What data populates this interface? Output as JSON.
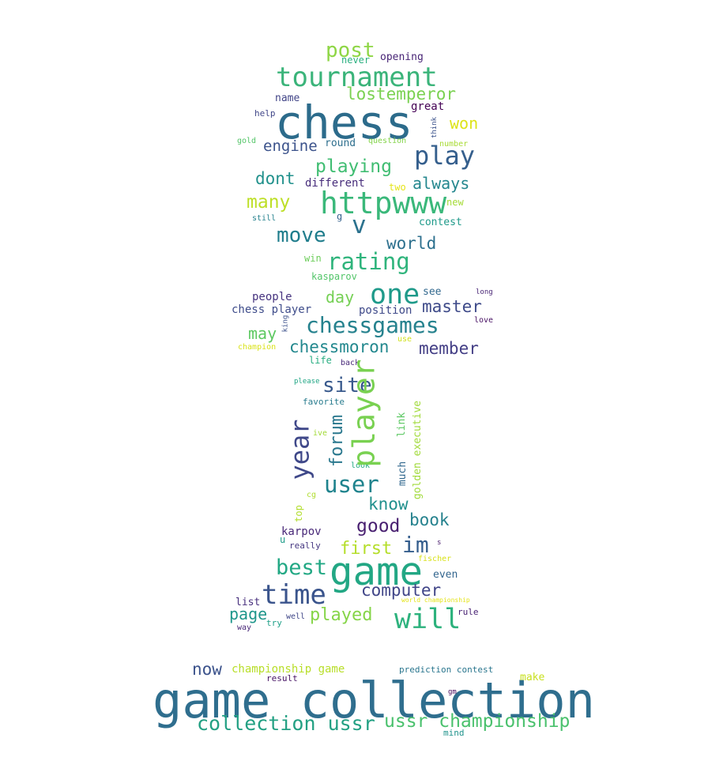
{
  "word_cloud": {
    "words": [
      {
        "text": "game collection",
        "color": "#2f6e8e"
      },
      {
        "text": "chess",
        "color": "#2c6b8b"
      },
      {
        "text": "game",
        "color": "#22a784"
      },
      {
        "text": "tournament",
        "color": "#3bb47a"
      },
      {
        "text": "httpwww",
        "color": "#3ab87a"
      },
      {
        "text": "player",
        "color": "#79d151"
      },
      {
        "text": "play",
        "color": "#355f8d"
      },
      {
        "text": "one",
        "color": "#1f9a8a"
      },
      {
        "text": "time",
        "color": "#3a548c"
      },
      {
        "text": "will",
        "color": "#2db27d"
      },
      {
        "text": "year",
        "color": "#3f4889"
      },
      {
        "text": "chessgames",
        "color": "#26828e"
      },
      {
        "text": "rating",
        "color": "#2fb47c"
      },
      {
        "text": "collection ussr",
        "color": "#23a083"
      },
      {
        "text": "ussr championship",
        "color": "#4ac16d"
      },
      {
        "text": "v",
        "color": "#2c728e"
      },
      {
        "text": "move",
        "color": "#1f7d8c"
      },
      {
        "text": "user",
        "color": "#1f838d"
      },
      {
        "text": "site",
        "color": "#38598c"
      },
      {
        "text": "post",
        "color": "#8ed645"
      },
      {
        "text": "best",
        "color": "#22a884"
      },
      {
        "text": "im",
        "color": "#355e8d"
      },
      {
        "text": "lostemperor",
        "color": "#7ad151"
      },
      {
        "text": "playing",
        "color": "#40bd72"
      },
      {
        "text": "forum",
        "color": "#2a788e"
      },
      {
        "text": "chessmoron",
        "color": "#23888e"
      },
      {
        "text": "computer",
        "color": "#404588"
      },
      {
        "text": "good",
        "color": "#481f70"
      },
      {
        "text": "member",
        "color": "#433e85"
      },
      {
        "text": "many",
        "color": "#bddf26"
      },
      {
        "text": "played",
        "color": "#86d549"
      },
      {
        "text": "first",
        "color": "#b5de2b"
      },
      {
        "text": "world",
        "color": "#2d708e"
      },
      {
        "text": "master",
        "color": "#3e4a89"
      },
      {
        "text": "engine",
        "color": "#3b528b"
      },
      {
        "text": "dont",
        "color": "#21918c"
      },
      {
        "text": "always",
        "color": "#24878e"
      },
      {
        "text": "page",
        "color": "#1f968b"
      },
      {
        "text": "know",
        "color": "#21908d"
      },
      {
        "text": "book",
        "color": "#26828e"
      },
      {
        "text": "won",
        "color": "#dde318"
      },
      {
        "text": "may",
        "color": "#5ec962"
      },
      {
        "text": "day",
        "color": "#75d054"
      },
      {
        "text": "now",
        "color": "#3b528b"
      },
      {
        "text": "championship game",
        "color": "#b8de29"
      },
      {
        "text": "karpov",
        "color": "#482878"
      },
      {
        "text": "people",
        "color": "#46337f"
      },
      {
        "text": "chess player",
        "color": "#3e4c8a"
      },
      {
        "text": "position",
        "color": "#3e4989"
      },
      {
        "text": "great",
        "color": "#440154"
      },
      {
        "text": "name",
        "color": "#414487"
      },
      {
        "text": "different",
        "color": "#472d7b"
      },
      {
        "text": "opening",
        "color": "#482576"
      },
      {
        "text": "round",
        "color": "#2e6f8e"
      },
      {
        "text": "contest",
        "color": "#1f9a8a"
      },
      {
        "text": "even",
        "color": "#32658e"
      },
      {
        "text": "golden executive",
        "color": "#a0da39"
      },
      {
        "text": "link",
        "color": "#5cc863"
      },
      {
        "text": "much",
        "color": "#31688e"
      },
      {
        "text": "kasparov",
        "color": "#52c569"
      },
      {
        "text": "life",
        "color": "#27ad81"
      },
      {
        "text": "list",
        "color": "#472f7d"
      },
      {
        "text": "make",
        "color": "#c8e020"
      },
      {
        "text": "never",
        "color": "#29af7f"
      },
      {
        "text": "see",
        "color": "#31688e"
      },
      {
        "text": "win",
        "color": "#6ccd5a"
      },
      {
        "text": "prediction contest",
        "color": "#2a768e"
      },
      {
        "text": "favorite",
        "color": "#287c8e"
      },
      {
        "text": "help",
        "color": "#404688"
      },
      {
        "text": "rule",
        "color": "#482173"
      },
      {
        "text": "result",
        "color": "#471365"
      },
      {
        "text": "really",
        "color": "#453781"
      },
      {
        "text": "try",
        "color": "#1fa088"
      },
      {
        "text": "well",
        "color": "#3f4788"
      },
      {
        "text": "way",
        "color": "#482878"
      },
      {
        "text": "mind",
        "color": "#20938c"
      },
      {
        "text": "look",
        "color": "#23a983"
      },
      {
        "text": "top",
        "color": "#b2dd2d"
      },
      {
        "text": "new",
        "color": "#a5db36"
      },
      {
        "text": "two",
        "color": "#e5e419"
      },
      {
        "text": "still",
        "color": "#26828e"
      },
      {
        "text": "question",
        "color": "#84d44b"
      },
      {
        "text": "number",
        "color": "#a8db34"
      },
      {
        "text": "gold",
        "color": "#54c568"
      },
      {
        "text": "think",
        "color": "#3b528b"
      },
      {
        "text": "back",
        "color": "#482979"
      },
      {
        "text": "use",
        "color": "#d0e11c"
      },
      {
        "text": "champion",
        "color": "#dae319"
      },
      {
        "text": "love",
        "color": "#471063"
      },
      {
        "text": "long",
        "color": "#482575"
      },
      {
        "text": "king",
        "color": "#3c508b"
      },
      {
        "text": "please",
        "color": "#21a685"
      },
      {
        "text": "ive",
        "color": "#a2da37"
      },
      {
        "text": "cg",
        "color": "#b0dd2f"
      },
      {
        "text": "u",
        "color": "#1e9c89"
      },
      {
        "text": "g",
        "color": "#34618d"
      },
      {
        "text": "s",
        "color": "#481b6d"
      },
      {
        "text": "gm",
        "color": "#46085c"
      },
      {
        "text": "fischer",
        "color": "#d8e219"
      },
      {
        "text": "world championship",
        "color": "#e4e419"
      }
    ]
  }
}
